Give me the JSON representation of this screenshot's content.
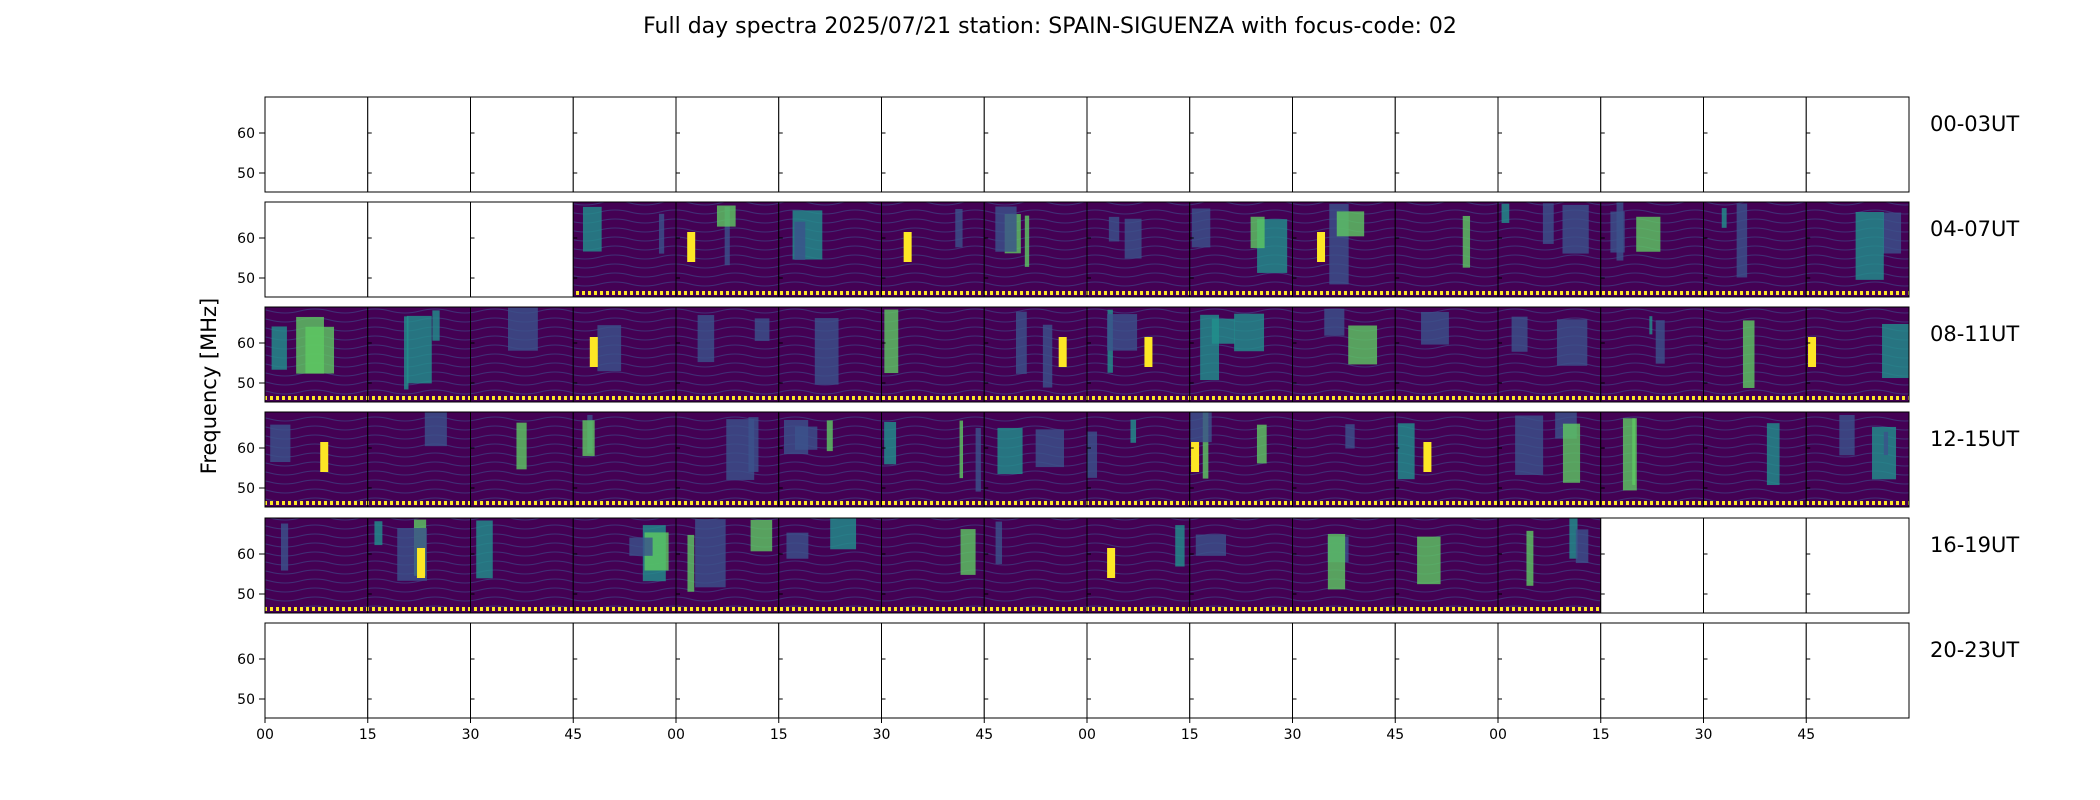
{
  "chart_data": {
    "type": "heatmap",
    "title": "Full day spectra 2025/07/21 station: SPAIN-SIGUENZA with focus-code: 02",
    "ylabel": "Frequency [MHz]",
    "y_ticks": [
      "60",
      "50"
    ],
    "x_ticks": [
      "00",
      "15",
      "30",
      "45",
      "00",
      "15",
      "30",
      "45",
      "00",
      "15",
      "30",
      "45",
      "00",
      "15",
      "30",
      "45"
    ],
    "rows": [
      {
        "label": "00-03UT",
        "panels": "0000000000000000"
      },
      {
        "label": "04-07UT",
        "panels": "0001111111111111"
      },
      {
        "label": "08-11UT",
        "panels": "1111111111111111"
      },
      {
        "label": "12-15UT",
        "panels": "1111111111111111"
      },
      {
        "label": "16-19UT",
        "panels": "1111111111111000"
      },
      {
        "label": "20-23UT",
        "panels": "0000000000000000"
      }
    ],
    "colors": {
      "background": "#440154",
      "mid": "#3b528b",
      "high": "#21918c",
      "bright": "#5ec962",
      "peak": "#fde725"
    }
  }
}
